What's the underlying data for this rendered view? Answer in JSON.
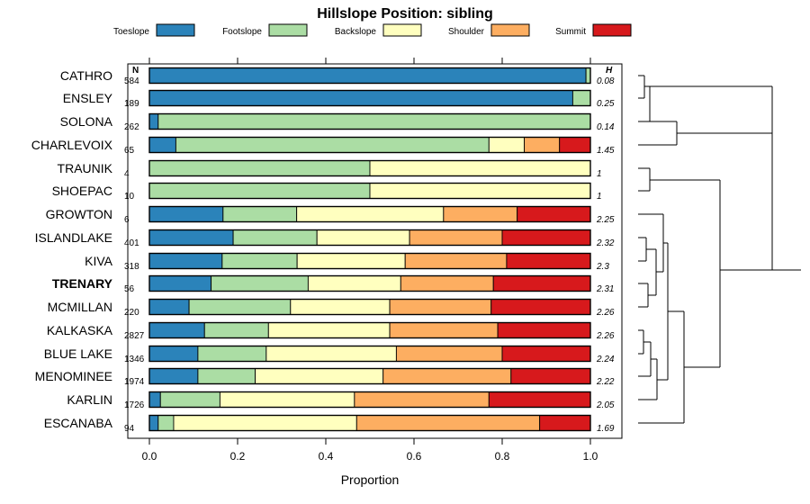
{
  "chart_data": {
    "type": "bar",
    "orientation": "horizontal",
    "stacked": true,
    "title": "Hillslope Position: sibling",
    "xlabel": "Proportion",
    "ylabel": "",
    "xlim": [
      0,
      1
    ],
    "xticks": [
      "0.0",
      "0.2",
      "0.4",
      "0.6",
      "0.8",
      "1.0"
    ],
    "xtick_values": [
      0,
      0.2,
      0.4,
      0.6,
      0.8,
      1.0
    ],
    "n_header": "N",
    "h_header": "H",
    "legend_position": "top",
    "series": [
      {
        "name": "Toeslope",
        "color": "#2b83ba"
      },
      {
        "name": "Footslope",
        "color": "#abdda4"
      },
      {
        "name": "Backslope",
        "color": "#ffffbf"
      },
      {
        "name": "Shoulder",
        "color": "#fdae61"
      },
      {
        "name": "Summit",
        "color": "#d7191c"
      }
    ],
    "rows": [
      {
        "name": "CATHRO",
        "n": "584",
        "h": "0.08",
        "bold": false,
        "values": [
          0.99,
          0.01,
          0,
          0,
          0
        ]
      },
      {
        "name": "ENSLEY",
        "n": "189",
        "h": "0.25",
        "bold": false,
        "values": [
          0.96,
          0.04,
          0,
          0,
          0
        ]
      },
      {
        "name": "SOLONA",
        "n": "262",
        "h": "0.14",
        "bold": false,
        "values": [
          0.02,
          0.98,
          0,
          0,
          0
        ]
      },
      {
        "name": "CHARLEVOIX",
        "n": "65",
        "h": "1.45",
        "bold": false,
        "values": [
          0.06,
          0.71,
          0.08,
          0.08,
          0.07
        ]
      },
      {
        "name": "TRAUNIK",
        "n": "4",
        "h": "1",
        "bold": false,
        "values": [
          0,
          0.5,
          0.5,
          0,
          0
        ]
      },
      {
        "name": "SHOEPAC",
        "n": "10",
        "h": "1",
        "bold": false,
        "values": [
          0,
          0.5,
          0.5,
          0,
          0
        ]
      },
      {
        "name": "GROWTON",
        "n": "6",
        "h": "2.25",
        "bold": false,
        "values": [
          0.167,
          0.167,
          0.333,
          0.167,
          0.166
        ]
      },
      {
        "name": "ISLANDLAKE",
        "n": "401",
        "h": "2.32",
        "bold": false,
        "values": [
          0.19,
          0.19,
          0.21,
          0.21,
          0.2
        ]
      },
      {
        "name": "KIVA",
        "n": "318",
        "h": "2.3",
        "bold": false,
        "values": [
          0.165,
          0.17,
          0.245,
          0.23,
          0.19
        ]
      },
      {
        "name": "TRENARY",
        "n": "56",
        "h": "2.31",
        "bold": true,
        "values": [
          0.14,
          0.22,
          0.21,
          0.21,
          0.22
        ]
      },
      {
        "name": "MCMILLAN",
        "n": "220",
        "h": "2.26",
        "bold": false,
        "values": [
          0.09,
          0.23,
          0.225,
          0.23,
          0.225
        ]
      },
      {
        "name": "KALKASKA",
        "n": "2827",
        "h": "2.26",
        "bold": false,
        "values": [
          0.125,
          0.145,
          0.275,
          0.245,
          0.21
        ]
      },
      {
        "name": "BLUE LAKE",
        "n": "1346",
        "h": "2.24",
        "bold": false,
        "values": [
          0.11,
          0.155,
          0.295,
          0.24,
          0.2
        ]
      },
      {
        "name": "MENOMINEE",
        "n": "1974",
        "h": "2.22",
        "bold": false,
        "values": [
          0.11,
          0.13,
          0.29,
          0.29,
          0.18
        ]
      },
      {
        "name": "KARLIN",
        "n": "1726",
        "h": "2.05",
        "bold": false,
        "values": [
          0.025,
          0.135,
          0.305,
          0.305,
          0.23
        ]
      },
      {
        "name": "ESCANABA",
        "n": "94",
        "h": "1.69",
        "bold": false,
        "values": [
          0.02,
          0.035,
          0.415,
          0.415,
          0.115
        ]
      }
    ]
  }
}
